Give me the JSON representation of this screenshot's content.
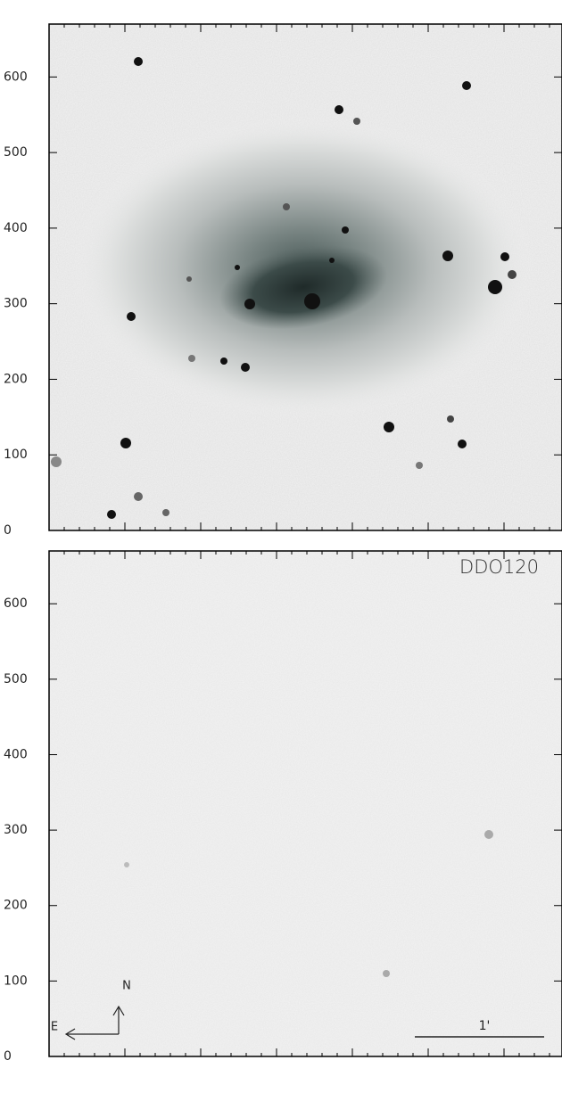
{
  "panels": [
    {
      "ylim": [
        0,
        670
      ],
      "yticks": [
        0,
        100,
        200,
        300,
        400,
        500,
        600
      ]
    },
    {
      "ylim": [
        0,
        670
      ],
      "yticks": [
        0,
        100,
        200,
        300,
        400,
        500,
        600
      ],
      "label": "DDO120",
      "compass": {
        "north": "N",
        "east": "E"
      },
      "scale_bar": "1'"
    }
  ]
}
